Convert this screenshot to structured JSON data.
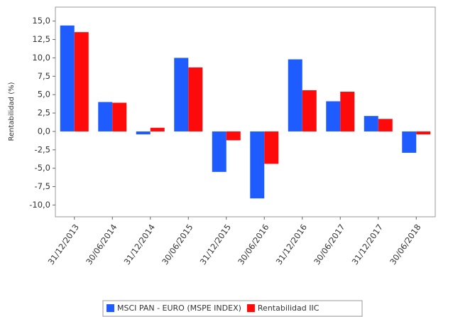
{
  "chart_data": {
    "type": "bar",
    "y_label": "Rentabilidad (%)",
    "categories": [
      "31/12/2013",
      "30/06/2014",
      "31/12/2014",
      "30/06/2015",
      "31/12/2015",
      "30/06/2016",
      "31/12/2016",
      "30/06/2017",
      "31/12/2017",
      "30/06/2018"
    ],
    "series": [
      {
        "name": "MSCI PAN - EURO (MSPE INDEX)",
        "color": "#1f5cff",
        "values": [
          14.4,
          4.0,
          -0.4,
          10.0,
          -5.5,
          -9.1,
          9.8,
          4.1,
          2.1,
          -2.9
        ]
      },
      {
        "name": "Rentabilidad IIC",
        "color": "#ff0a0a",
        "values": [
          13.5,
          3.9,
          0.5,
          8.7,
          -1.2,
          -4.4,
          5.6,
          5.4,
          1.7,
          -0.4
        ]
      }
    ],
    "ylim": [
      -11.6,
      16.9
    ],
    "yticks": [
      {
        "value": 15,
        "label": "15,0"
      },
      {
        "value": 12.5,
        "label": "12,5"
      },
      {
        "value": 10,
        "label": "10,0"
      },
      {
        "value": 7.5,
        "label": "7,5"
      },
      {
        "value": 5,
        "label": "5,0"
      },
      {
        "value": 2.5,
        "label": "2,5"
      },
      {
        "value": 0,
        "label": "0,0"
      },
      {
        "value": -2.5,
        "label": "-2,5"
      },
      {
        "value": -5,
        "label": "-5,0"
      },
      {
        "value": -7.5,
        "label": "-7,5"
      },
      {
        "value": -10,
        "label": "-10,0"
      }
    ],
    "legend": "bottom"
  }
}
